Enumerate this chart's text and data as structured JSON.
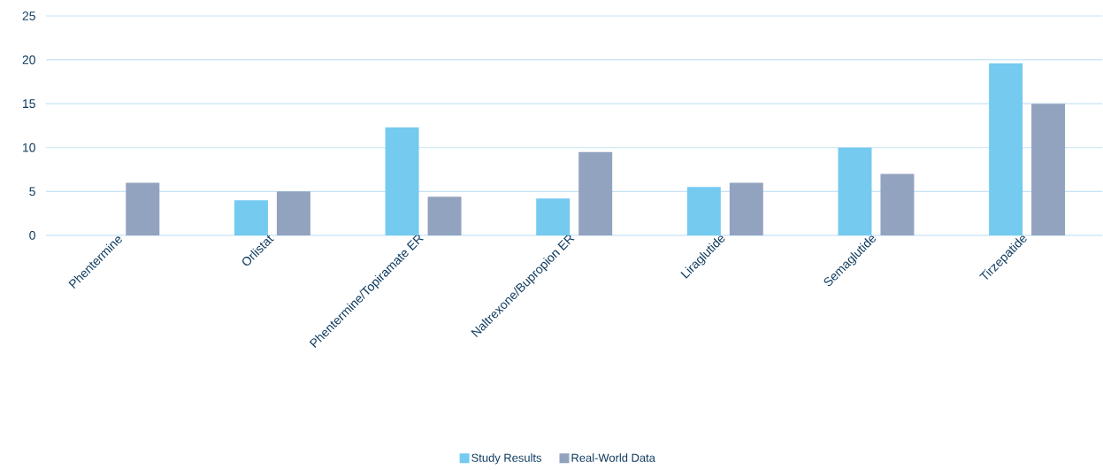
{
  "chart_data": {
    "type": "bar",
    "categories": [
      "Phentermine",
      "Orlistat",
      "Phentermine/Topiramate ER",
      "Naltrexone/Bupropion ER",
      "Liraglutide",
      "Semaglutide",
      "Tirzepatide"
    ],
    "series": [
      {
        "name": "Study Results",
        "color": "#75caf0",
        "values": [
          null,
          4,
          12.3,
          4.2,
          5.5,
          10,
          19.6
        ]
      },
      {
        "name": "Real-World Data",
        "color": "#92a3bf",
        "values": [
          6,
          5,
          4.4,
          9.5,
          6,
          7,
          15
        ]
      }
    ],
    "ylim": [
      0,
      25
    ],
    "yticks": [
      0,
      5,
      10,
      15,
      20,
      25
    ],
    "grid": "y",
    "legend": "bottom"
  }
}
